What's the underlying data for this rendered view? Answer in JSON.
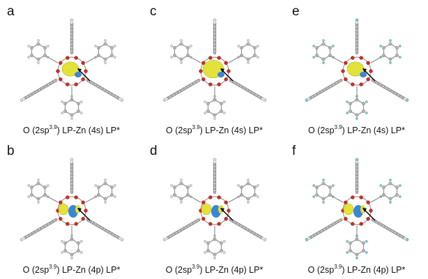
{
  "panels": [
    {
      "letter": "a",
      "cap_pre": "O (2sp",
      "cap_sup": "3.9",
      "cap_post": ") LP-Zn (4s) LP*",
      "orbital": "4s",
      "ring_color": "#8a8a8a"
    },
    {
      "letter": "c",
      "cap_pre": "O (2sp",
      "cap_sup": "3.9",
      "cap_post": ") LP-Zn (4s) LP*",
      "orbital": "4s",
      "ring_color": "#8a8a8a"
    },
    {
      "letter": "e",
      "cap_pre": "O (2sp",
      "cap_sup": "3.9",
      "cap_post": ") LP-Zn (4s) LP*",
      "orbital": "4s",
      "ring_color": "#8a8a8a",
      "substituent": "fluorine"
    },
    {
      "letter": "b",
      "cap_pre": "O (2sp",
      "cap_sup": "3.9",
      "cap_post": ") LP-Zn (4p) LP*",
      "orbital": "4p",
      "ring_color": "#8a8a8a"
    },
    {
      "letter": "d",
      "cap_pre": "O (2sp",
      "cap_sup": "3.9",
      "cap_post": ") LP-Zn (4p) LP*",
      "orbital": "4p",
      "ring_color": "#8a8a8a"
    },
    {
      "letter": "f",
      "cap_pre": "O (2sp",
      "cap_sup": "3.9",
      "cap_post": ") LP-Zn (4p) LP*",
      "orbital": "4p",
      "ring_color": "#8a8a8a",
      "substituent": "fluorine"
    }
  ],
  "colors": {
    "lobe_positive": "#e3e23a",
    "lobe_negative": "#3a86d4",
    "oxygen": "#d42a1e",
    "carbon": "#9a9a9a",
    "hydrogen": "#d9d9d9",
    "fluorine": "#6fd0d8",
    "arrow": "#000000"
  }
}
